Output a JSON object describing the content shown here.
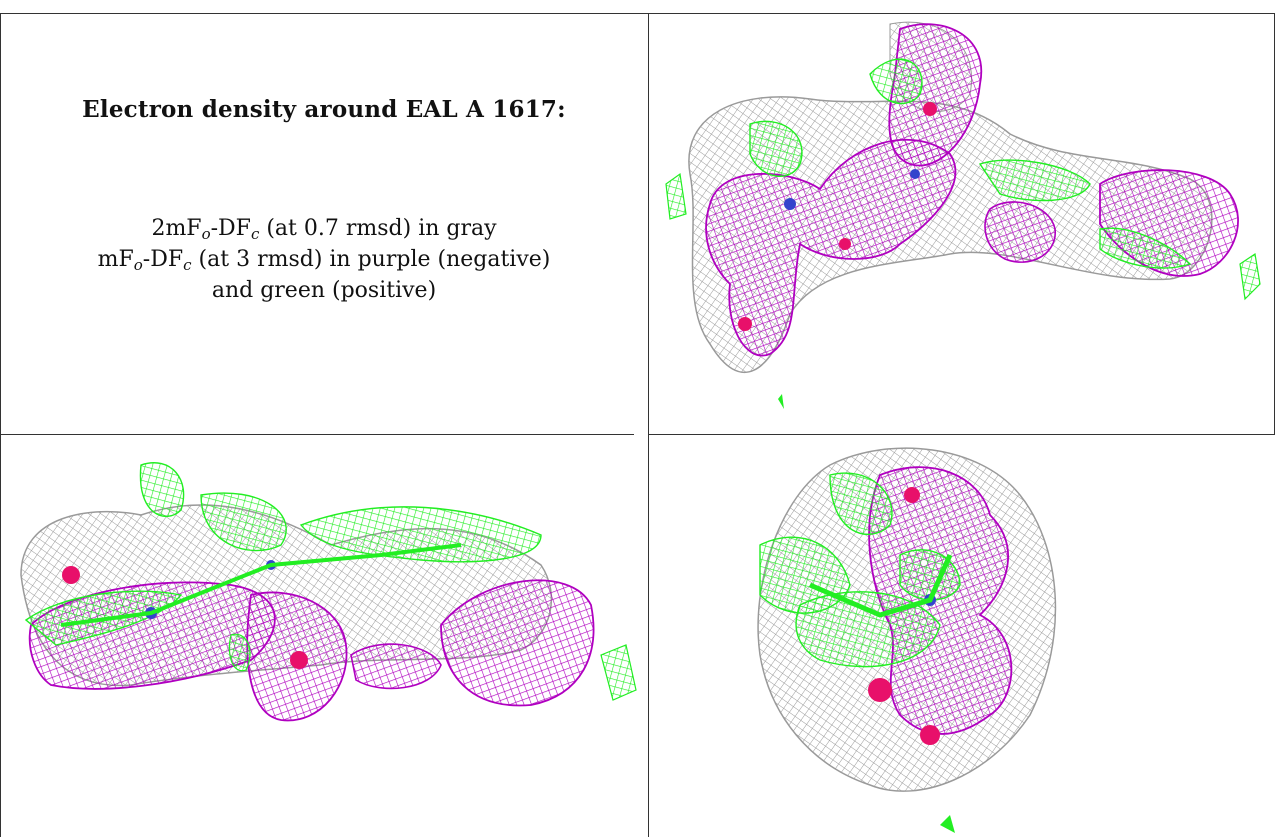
{
  "legend": {
    "title": "Electron density around EAL A 1617:",
    "line1": {
      "pre": "2mF",
      "sub1": "o",
      "mid": "-DF",
      "sub2": "c",
      "post": " (at 0.7 rmsd) in gray"
    },
    "line2": {
      "pre": "mF",
      "sub1": "o",
      "mid": "-DF",
      "sub2": "c",
      "post": " (at 3 rmsd) in purple (negative)"
    },
    "line3": "and green (positive)"
  },
  "colors": {
    "gray_mesh": "#9a9a9a",
    "purple_mesh": "#b000c0",
    "green_mesh": "#22ee22",
    "oxygen": "#e8106a",
    "nitrogen": "#3344cc",
    "rule": "#333333"
  },
  "panels": [
    {
      "name": "view-top-right",
      "views": "electron-density-mesh"
    },
    {
      "name": "view-bottom-left",
      "views": "electron-density-mesh"
    },
    {
      "name": "view-bottom-right",
      "views": "electron-density-mesh"
    }
  ]
}
